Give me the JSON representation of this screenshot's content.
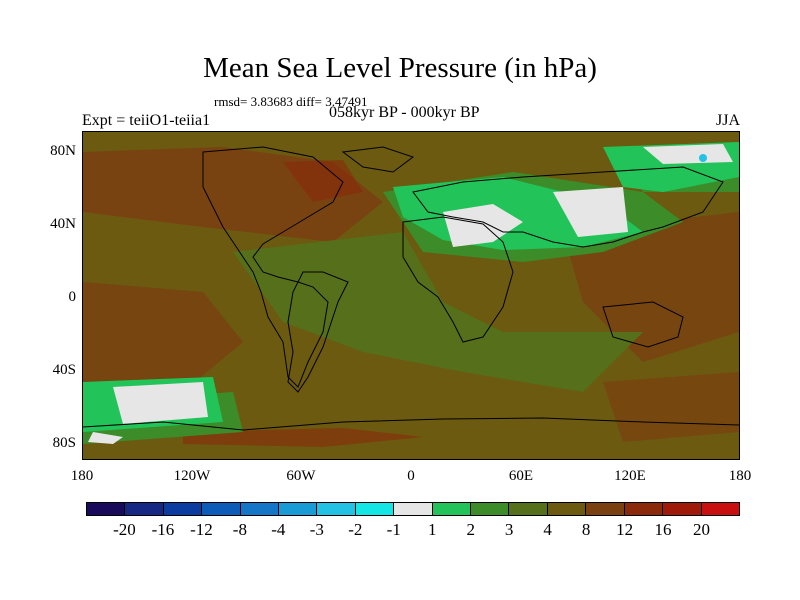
{
  "title": "Mean Sea Level Pressure (in hPa)",
  "stats_text": "rmsd= 3.83683 diff= 3.47491",
  "experiment_label": "Expt = teiiO1-teiia1",
  "period_label": "058kyr BP - 000kyr BP",
  "season_label": "JJA",
  "lat_labels": [
    "80N",
    "40N",
    "0",
    "40S",
    "80S"
  ],
  "lon_labels": [
    "180",
    "120W",
    "60W",
    "0",
    "60E",
    "120E",
    "180"
  ],
  "colorbar": {
    "colors": [
      "#1a0a5c",
      "#162784",
      "#0b3da0",
      "#0d5cb8",
      "#1576c8",
      "#199bd6",
      "#23c2e4",
      "#14e6e6",
      "#e6e6e6",
      "#22c45a",
      "#3c8c2a",
      "#566f1a",
      "#6b5a10",
      "#7a4010",
      "#8a2a0a",
      "#a01a0a",
      "#c81010"
    ],
    "labels": [
      "-20",
      "-16",
      "-12",
      "-8",
      "-4",
      "-3",
      "-2",
      "-1",
      "1",
      "2",
      "3",
      "4",
      "8",
      "12",
      "16",
      "20"
    ]
  }
}
